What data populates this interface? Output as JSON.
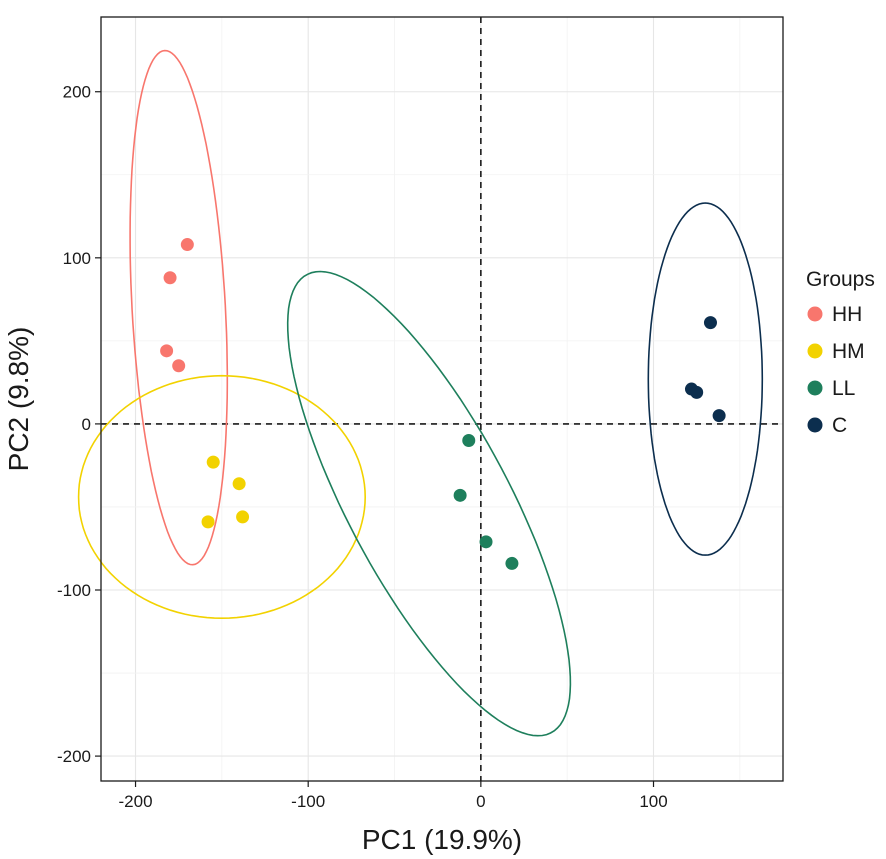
{
  "chart_data": {
    "type": "scatter",
    "title": "",
    "xlabel": "PC1 (19.9%)",
    "ylabel": "PC2 (9.8%)",
    "xlim": [
      -220,
      175
    ],
    "ylim": [
      -215,
      245
    ],
    "x_ticks": [
      -200,
      -100,
      0,
      100
    ],
    "x_tick_labels": [
      "-200",
      "-100",
      "0",
      "100"
    ],
    "y_ticks": [
      200,
      100,
      0,
      -100,
      -200
    ],
    "y_tick_labels": [
      "200",
      "100",
      "0",
      "-100",
      "-200"
    ],
    "grid": true,
    "reference_lines": {
      "x": 0,
      "y": 0,
      "style": "dashed"
    },
    "legend": {
      "title": "Groups",
      "position": "right"
    },
    "series": [
      {
        "name": "HH",
        "color": "#F8766D",
        "points": [
          [
            -170,
            108
          ],
          [
            -180,
            88
          ],
          [
            -182,
            44
          ],
          [
            -175,
            35
          ]
        ],
        "ellipse": {
          "center": [
            -175,
            70
          ],
          "semi_axes": [
            27,
            155
          ],
          "angle_deg": 3
        }
      },
      {
        "name": "HM",
        "color": "#F2D200",
        "points": [
          [
            -155,
            -23
          ],
          [
            -140,
            -36
          ],
          [
            -158,
            -59
          ],
          [
            -138,
            -56
          ]
        ],
        "ellipse": {
          "center": [
            -150,
            -44
          ],
          "semi_axes": [
            83,
            73
          ],
          "angle_deg": 0
        }
      },
      {
        "name": "LL",
        "color": "#1E7F5C",
        "points": [
          [
            -7,
            -10
          ],
          [
            -12,
            -43
          ],
          [
            3,
            -71
          ],
          [
            18,
            -84
          ]
        ],
        "ellipse": {
          "center": [
            -30,
            -48
          ],
          "semi_axes": [
            47,
            155
          ],
          "angle_deg": 27
        }
      },
      {
        "name": "C",
        "color": "#0C2E4E",
        "points": [
          [
            133,
            61
          ],
          [
            122,
            21
          ],
          [
            125,
            19
          ],
          [
            138,
            5
          ]
        ],
        "ellipse": {
          "center": [
            130,
            27
          ],
          "semi_axes": [
            33,
            106
          ],
          "angle_deg": 0
        }
      }
    ]
  }
}
